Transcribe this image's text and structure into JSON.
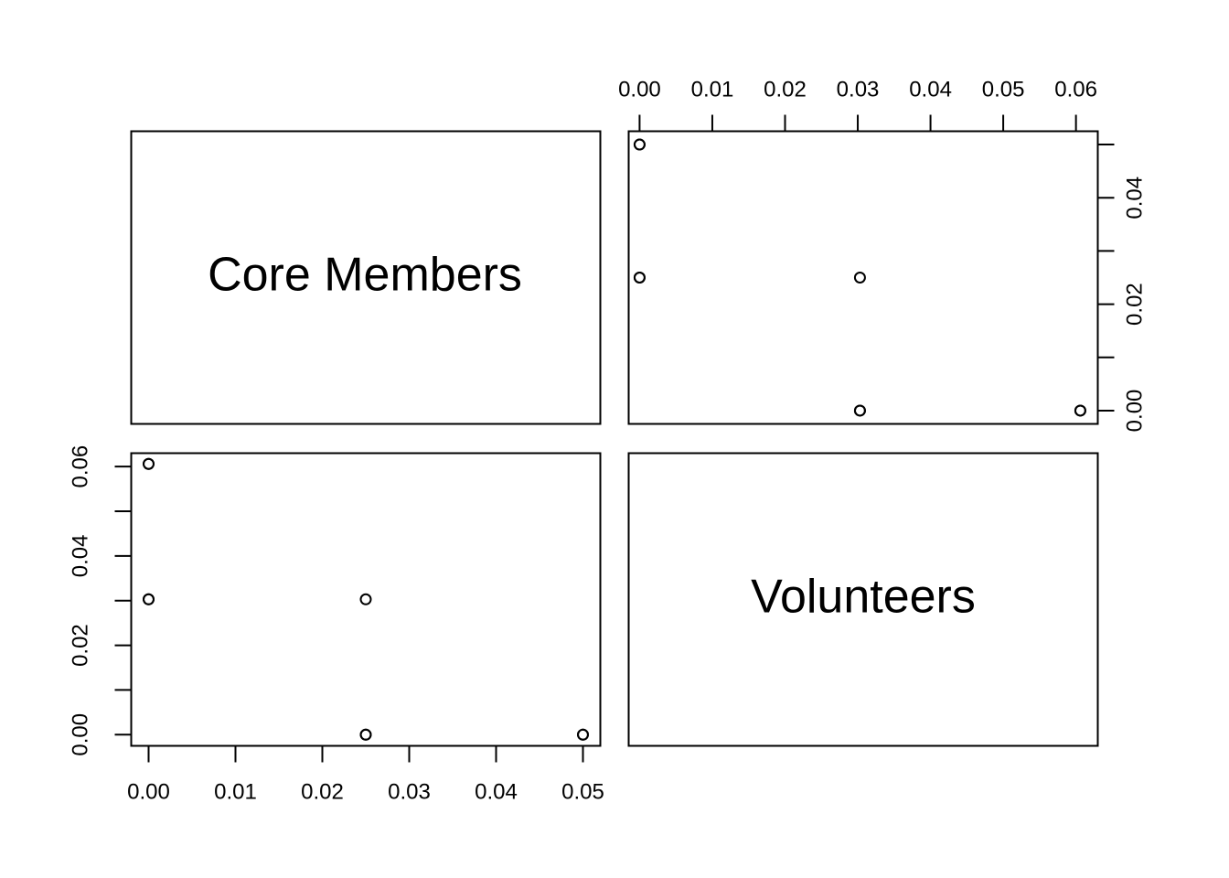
{
  "chart_data": {
    "type": "scatter",
    "variables": [
      "Core Members",
      "Volunteers"
    ],
    "grid": false,
    "panels": [
      {
        "position": "top-right",
        "x_variable": "Volunteers",
        "y_variable": "Core Members",
        "xlim": [
          -0.0015,
          0.063
        ],
        "ylim": [
          -0.0025,
          0.0525
        ],
        "x_ticks": [
          0.0,
          0.01,
          0.02,
          0.03,
          0.04,
          0.05,
          0.06
        ],
        "x_tick_labels": [
          "0.00",
          "0.01",
          "0.02",
          "0.03",
          "0.04",
          "0.05",
          "0.06"
        ],
        "x_axis_side": "top",
        "y_ticks": [
          0.0,
          0.01,
          0.02,
          0.03,
          0.04,
          0.05
        ],
        "y_tick_labels": [
          "0.00",
          "",
          "0.02",
          "",
          "0.04",
          ""
        ],
        "y_axis_side": "right",
        "points": [
          {
            "x": 0.0,
            "y": 0.05
          },
          {
            "x": 0.0,
            "y": 0.05
          },
          {
            "x": 0.0,
            "y": 0.025
          },
          {
            "x": 0.0,
            "y": 0.025
          },
          {
            "x": 0.0303,
            "y": 0.025
          },
          {
            "x": 0.0303,
            "y": 0.0
          },
          {
            "x": 0.0303,
            "y": 0.0
          },
          {
            "x": 0.0606,
            "y": 0.0
          },
          {
            "x": 0.0606,
            "y": 0.0
          }
        ]
      },
      {
        "position": "bottom-left",
        "x_variable": "Core Members",
        "y_variable": "Volunteers",
        "xlim": [
          -0.002,
          0.052
        ],
        "ylim": [
          -0.0025,
          0.063
        ],
        "x_ticks": [
          0.0,
          0.01,
          0.02,
          0.03,
          0.04,
          0.05
        ],
        "x_tick_labels": [
          "0.00",
          "0.01",
          "0.02",
          "0.03",
          "0.04",
          "0.05"
        ],
        "x_axis_side": "bottom",
        "y_ticks": [
          0.0,
          0.01,
          0.02,
          0.03,
          0.04,
          0.05,
          0.06
        ],
        "y_tick_labels": [
          "0.00",
          "",
          "0.02",
          "",
          "0.04",
          "",
          "0.06"
        ],
        "y_axis_side": "left",
        "points": [
          {
            "x": 0.0,
            "y": 0.0606
          },
          {
            "x": 0.0,
            "y": 0.0606
          },
          {
            "x": 0.0,
            "y": 0.0303
          },
          {
            "x": 0.0,
            "y": 0.0303
          },
          {
            "x": 0.025,
            "y": 0.0303
          },
          {
            "x": 0.025,
            "y": 0.0
          },
          {
            "x": 0.025,
            "y": 0.0
          },
          {
            "x": 0.05,
            "y": 0.0
          },
          {
            "x": 0.05,
            "y": 0.0
          }
        ]
      }
    ]
  }
}
